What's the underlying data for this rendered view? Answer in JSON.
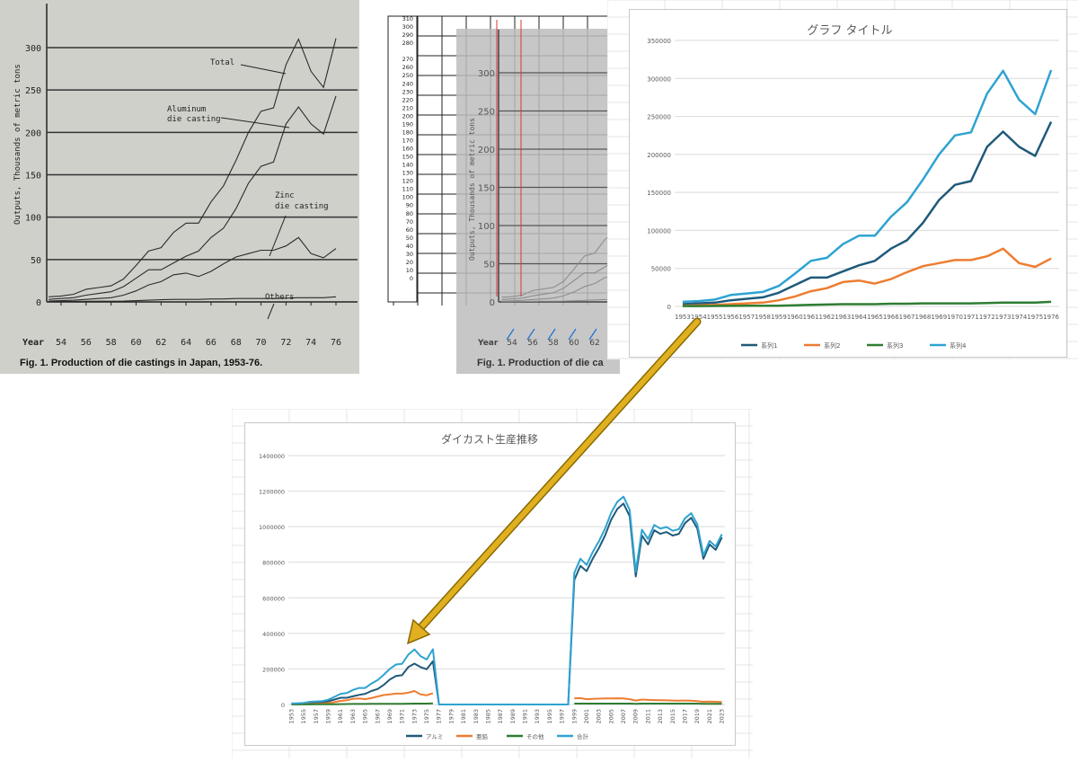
{
  "scan": {
    "ytick_labels": [
      "0",
      "50",
      "100",
      "150",
      "200",
      "250",
      "300"
    ],
    "xtick_labels": [
      "54",
      "56",
      "58",
      "60",
      "62",
      "64",
      "66",
      "68",
      "70",
      "72",
      "74",
      "76"
    ],
    "year_label": "Year",
    "ylabel": "Outputs, Thousands of metric tons",
    "caption": "Fig. 1. Production of die castings in Japan, 1953-76.",
    "annotations": {
      "total": "Total",
      "alu1": "Aluminum",
      "alu2": "die casting",
      "zinc1": "Zinc",
      "zinc2": "die casting",
      "others": "Others"
    }
  },
  "sheet_mid": {
    "ladder_labels": [
      "310",
      "300",
      "290",
      "280",
      "",
      "270",
      "260",
      "250",
      "240",
      "230",
      "220",
      "210",
      "200",
      "190",
      "180",
      "170",
      "160",
      "150",
      "140",
      "130",
      "120",
      "110",
      "100",
      "90",
      "80",
      "70",
      "60",
      "50",
      "40",
      "30",
      "20",
      "10",
      "0"
    ],
    "ghost_yticks": [
      "300",
      "250",
      "200",
      "150",
      "100",
      "50",
      "0"
    ],
    "ghost_xticks": [
      "54",
      "56",
      "58",
      "60",
      "62"
    ],
    "ghost_year": "Year",
    "ghost_ylabel": "Outputs, Thousands of metric tons",
    "ghost_caption": "Fig. 1. Production of die ca"
  },
  "colors": {
    "s1": "#1f5a7a",
    "s2": "#ed7d31",
    "s3": "#2e7d32",
    "s4": "#2ea3d1",
    "arrow": "#e0b020"
  },
  "chart_data": [
    {
      "type": "line",
      "title": "グラフ タイトル",
      "x": [
        "1953",
        "1954",
        "1955",
        "1956",
        "1957",
        "1958",
        "1959",
        "1960",
        "1961",
        "1962",
        "1963",
        "1964",
        "1965",
        "1966",
        "1967",
        "1968",
        "1969",
        "1970",
        "1971",
        "1972",
        "1973",
        "1974",
        "1975",
        "1976"
      ],
      "yticks": [
        "0",
        "50000",
        "100000",
        "150000",
        "200000",
        "250000",
        "300000",
        "350000"
      ],
      "ylim": [
        0,
        350000
      ],
      "series": [
        {
          "name": "系列1",
          "color": "#1f5a7a",
          "values": [
            3000,
            4000,
            5000,
            8000,
            10000,
            12000,
            18000,
            28000,
            38000,
            38000,
            46000,
            54000,
            60000,
            76000,
            87000,
            110000,
            140000,
            160000,
            165000,
            210000,
            230000,
            210000,
            198000,
            243000
          ]
        },
        {
          "name": "系列2",
          "color": "#ed7d31",
          "values": [
            1000,
            1500,
            2000,
            3000,
            4000,
            5000,
            8000,
            13000,
            20000,
            24000,
            32000,
            34000,
            30000,
            36000,
            45000,
            53000,
            57000,
            61000,
            61000,
            66000,
            76000,
            57000,
            52000,
            63000
          ]
        },
        {
          "name": "系列3",
          "color": "#2e7d32",
          "values": [
            500,
            500,
            600,
            700,
            800,
            900,
            1000,
            1500,
            2000,
            2500,
            3000,
            3000,
            3000,
            3500,
            3500,
            4000,
            4000,
            4000,
            4000,
            4500,
            5000,
            5000,
            5000,
            6000
          ]
        },
        {
          "name": "系列4",
          "color": "#2ea3d1",
          "values": [
            6000,
            7000,
            9000,
            15000,
            17000,
            19000,
            27000,
            43000,
            60000,
            64000,
            82000,
            93000,
            93000,
            118000,
            137000,
            167000,
            200000,
            225000,
            229000,
            280000,
            310000,
            272000,
            253000,
            311000
          ]
        }
      ],
      "legend": "bottom"
    },
    {
      "type": "line",
      "title": "ダイカスト生産推移",
      "x": [
        "1953",
        "1954",
        "1955",
        "1956",
        "1957",
        "1958",
        "1959",
        "1960",
        "1961",
        "1962",
        "1963",
        "1964",
        "1965",
        "1966",
        "1967",
        "1968",
        "1969",
        "1970",
        "1971",
        "1972",
        "1973",
        "1974",
        "1975",
        "1976",
        "1977",
        "1978",
        "1979",
        "1980",
        "1981",
        "1982",
        "1983",
        "1984",
        "1985",
        "1986",
        "1987",
        "1988",
        "1989",
        "1990",
        "1991",
        "1992",
        "1993",
        "1994",
        "1995",
        "1996",
        "1997",
        "1998",
        "1999",
        "2000",
        "2001",
        "2002",
        "2003",
        "2004",
        "2005",
        "2006",
        "2007",
        "2008",
        "2009",
        "2010",
        "2011",
        "2012",
        "2013",
        "2014",
        "2015",
        "2016",
        "2017",
        "2018",
        "2019",
        "2020",
        "2021",
        "2022",
        "2023"
      ],
      "xtick_labels": [
        "1953",
        "1955",
        "1957",
        "1959",
        "1961",
        "1963",
        "1965",
        "1967",
        "1969",
        "1971",
        "1973",
        "1975",
        "1977",
        "1979",
        "1981",
        "1983",
        "1985",
        "1987",
        "1989",
        "1991",
        "1993",
        "1995",
        "1997",
        "1999",
        "2001",
        "2003",
        "2005",
        "2007",
        "2009",
        "2011",
        "2013",
        "2015",
        "2017",
        "2019",
        "2021",
        "2023"
      ],
      "yticks": [
        "0",
        "200000",
        "400000",
        "600000",
        "800000",
        "1000000",
        "1200000",
        "1400000"
      ],
      "ylim": [
        0,
        1400000
      ],
      "series": [
        {
          "name": "アルミ",
          "color": "#1f5a7a",
          "values": [
            3000,
            4000,
            5000,
            8000,
            10000,
            12000,
            18000,
            28000,
            38000,
            38000,
            46000,
            54000,
            60000,
            76000,
            87000,
            110000,
            140000,
            160000,
            165000,
            210000,
            230000,
            210000,
            198000,
            243000,
            0,
            0,
            0,
            0,
            0,
            0,
            0,
            0,
            0,
            0,
            0,
            0,
            0,
            0,
            0,
            0,
            0,
            0,
            0,
            0,
            0,
            0,
            700000,
            780000,
            750000,
            820000,
            880000,
            950000,
            1040000,
            1100000,
            1130000,
            1060000,
            720000,
            950000,
            900000,
            980000,
            960000,
            970000,
            950000,
            960000,
            1020000,
            1050000,
            990000,
            820000,
            900000,
            870000,
            940000
          ]
        },
        {
          "name": "亜鉛",
          "color": "#ed7d31",
          "values": [
            1000,
            1500,
            2000,
            3000,
            4000,
            5000,
            8000,
            13000,
            20000,
            24000,
            32000,
            34000,
            30000,
            36000,
            45000,
            53000,
            57000,
            61000,
            61000,
            66000,
            76000,
            57000,
            52000,
            63000,
            null,
            null,
            null,
            null,
            null,
            null,
            null,
            null,
            null,
            null,
            null,
            null,
            null,
            null,
            null,
            null,
            null,
            null,
            null,
            null,
            null,
            null,
            35000,
            36000,
            30000,
            32000,
            33000,
            34000,
            34000,
            35000,
            34000,
            30000,
            22000,
            28000,
            26000,
            25000,
            24000,
            23000,
            22000,
            21000,
            22000,
            21000,
            19000,
            15000,
            16000,
            15000,
            14000
          ]
        },
        {
          "name": "その他",
          "color": "#2e7d32",
          "values": [
            500,
            500,
            600,
            700,
            800,
            900,
            1000,
            1500,
            2000,
            2500,
            3000,
            3000,
            3000,
            3500,
            3500,
            4000,
            4000,
            4000,
            4000,
            4500,
            5000,
            5000,
            5000,
            6000,
            null,
            null,
            null,
            null,
            null,
            null,
            null,
            null,
            null,
            null,
            null,
            null,
            null,
            null,
            null,
            null,
            null,
            null,
            null,
            null,
            null,
            null,
            5000,
            5000,
            5000,
            5000,
            5000,
            5000,
            5000,
            5000,
            5000,
            5000,
            4000,
            5000,
            5000,
            5000,
            5000,
            5000,
            5000,
            5000,
            5000,
            5000,
            5000,
            4000,
            4000,
            4000,
            4000
          ]
        },
        {
          "name": "合計",
          "color": "#2ea3d1",
          "values": [
            6000,
            7000,
            9000,
            15000,
            17000,
            19000,
            27000,
            43000,
            60000,
            64000,
            82000,
            93000,
            93000,
            118000,
            137000,
            167000,
            200000,
            225000,
            229000,
            280000,
            310000,
            272000,
            253000,
            311000,
            0,
            0,
            0,
            0,
            0,
            0,
            0,
            0,
            0,
            0,
            0,
            0,
            0,
            0,
            0,
            0,
            0,
            0,
            0,
            0,
            0,
            0,
            740000,
            820000,
            785000,
            857000,
            918000,
            989000,
            1079000,
            1140000,
            1169000,
            1095000,
            746000,
            983000,
            931000,
            1010000,
            989000,
            998000,
            977000,
            986000,
            1047000,
            1076000,
            1014000,
            839000,
            920000,
            889000,
            958000
          ]
        }
      ],
      "legend": "bottom"
    }
  ]
}
